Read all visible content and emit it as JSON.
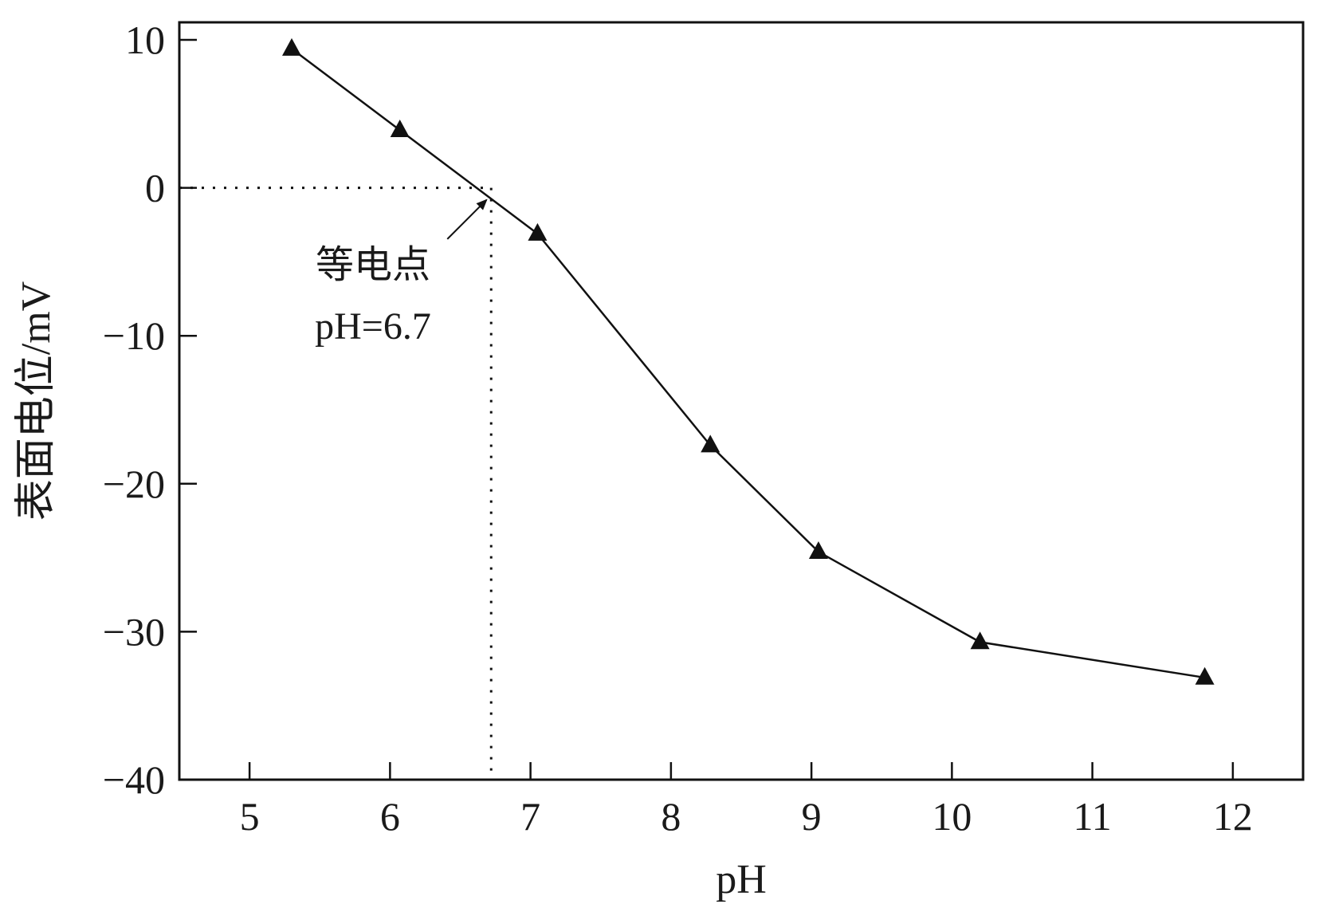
{
  "chart_data": {
    "type": "line",
    "title": "",
    "xlabel": "pH",
    "ylabel": "表面电位/mV",
    "xlim": [
      4.5,
      12.5
    ],
    "ylim": [
      -40,
      10
    ],
    "xticks": [
      5,
      6,
      7,
      8,
      9,
      10,
      11,
      12
    ],
    "yticks": [
      10,
      0,
      -10,
      -20,
      -30,
      -40
    ],
    "ytick_labels": [
      "10",
      "0",
      "−10",
      "−20",
      "−30",
      "−40"
    ],
    "grid": false,
    "legend": "none",
    "marker": "triangle",
    "colors": {
      "line": "#111111",
      "marker": "#111111",
      "axis": "#111111"
    },
    "series": [
      {
        "x": [
          5.3,
          6.07,
          7.05,
          8.28,
          9.05,
          10.2,
          11.8
        ],
        "y": [
          9.4,
          3.9,
          -3.1,
          -17.4,
          -24.6,
          -30.7,
          -33.1
        ]
      }
    ],
    "annotation": {
      "line1": "等电点",
      "line2": "pH=6.7",
      "point": {
        "x": 6.72,
        "y": -0.5
      }
    },
    "isoelectric_ref": {
      "x": 6.72,
      "y": 0
    }
  }
}
